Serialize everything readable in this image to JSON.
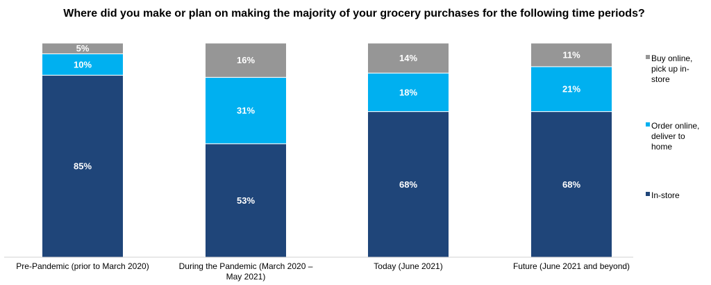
{
  "chart_data": {
    "type": "bar",
    "stacked": true,
    "title": "Where did you make or plan on making the majority of your grocery purchases for the following time periods?",
    "categories": [
      [
        "Pre-Pandemic (prior to March 2020)"
      ],
      [
        "During the Pandemic (March 2020 –",
        "May 2021)"
      ],
      [
        "Today (June 2021)"
      ],
      [
        "Future (June 2021 and beyond)"
      ]
    ],
    "series": [
      {
        "name": "In-store",
        "color": "#1F4579",
        "values": [
          85,
          53,
          68,
          68
        ]
      },
      {
        "name": "Order online, deliver to home",
        "color": "#00B0F0",
        "values": [
          10,
          31,
          18,
          21
        ]
      },
      {
        "name": "Buy online, pick up in-store",
        "color": "#969696",
        "values": [
          5,
          16,
          14,
          11
        ]
      }
    ],
    "value_suffix": "%",
    "ylim": [
      0,
      100
    ],
    "grid": false,
    "legend": {
      "position": "right",
      "entries": [
        {
          "series": 2,
          "lines": [
            "Buy online,",
            "pick up in-",
            "store"
          ]
        },
        {
          "series": 1,
          "lines": [
            "Order online,",
            "deliver to",
            "home"
          ]
        },
        {
          "series": 0,
          "lines": [
            "In-store"
          ]
        }
      ]
    }
  }
}
